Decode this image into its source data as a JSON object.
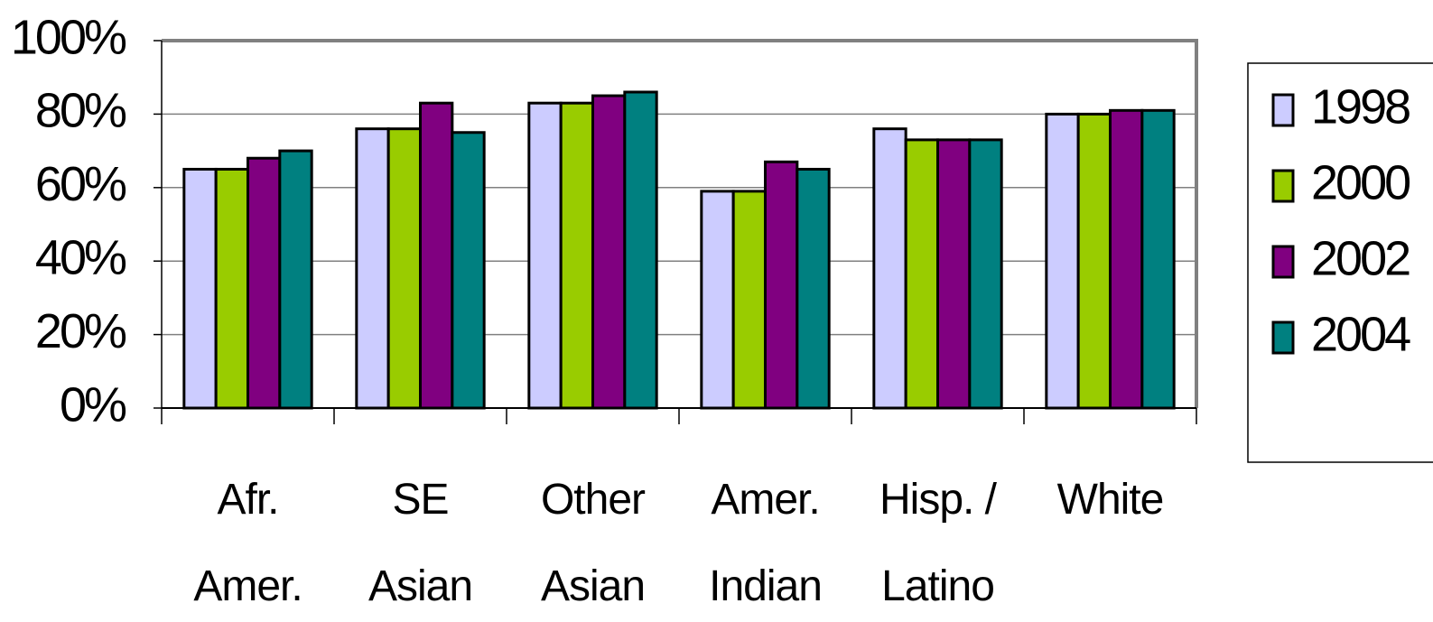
{
  "chart_data": {
    "type": "bar",
    "categories": [
      "Afr. Amer.",
      "SE Asian",
      "Other Asian",
      "Amer. Indian",
      "Hisp. / Latino",
      "White"
    ],
    "series": [
      {
        "name": "1998",
        "color": "#ccccff",
        "values": [
          65,
          76,
          83,
          59,
          76,
          80
        ]
      },
      {
        "name": "2000",
        "color": "#99cc00",
        "values": [
          65,
          76,
          83,
          59,
          73,
          80
        ]
      },
      {
        "name": "2002",
        "color": "#800080",
        "values": [
          68,
          83,
          85,
          67,
          73,
          81
        ]
      },
      {
        "name": "2004",
        "color": "#008080",
        "values": [
          70,
          75,
          86,
          65,
          73,
          81
        ]
      }
    ],
    "ylim": [
      0,
      100
    ],
    "yticks": [
      {
        "value": 0,
        "label": "0%"
      },
      {
        "value": 20,
        "label": "20%"
      },
      {
        "value": 40,
        "label": "40%"
      },
      {
        "value": 60,
        "label": "60%"
      },
      {
        "value": 80,
        "label": "80%"
      },
      {
        "value": 100,
        "label": "100%"
      }
    ],
    "grid": true,
    "legend": "right"
  }
}
